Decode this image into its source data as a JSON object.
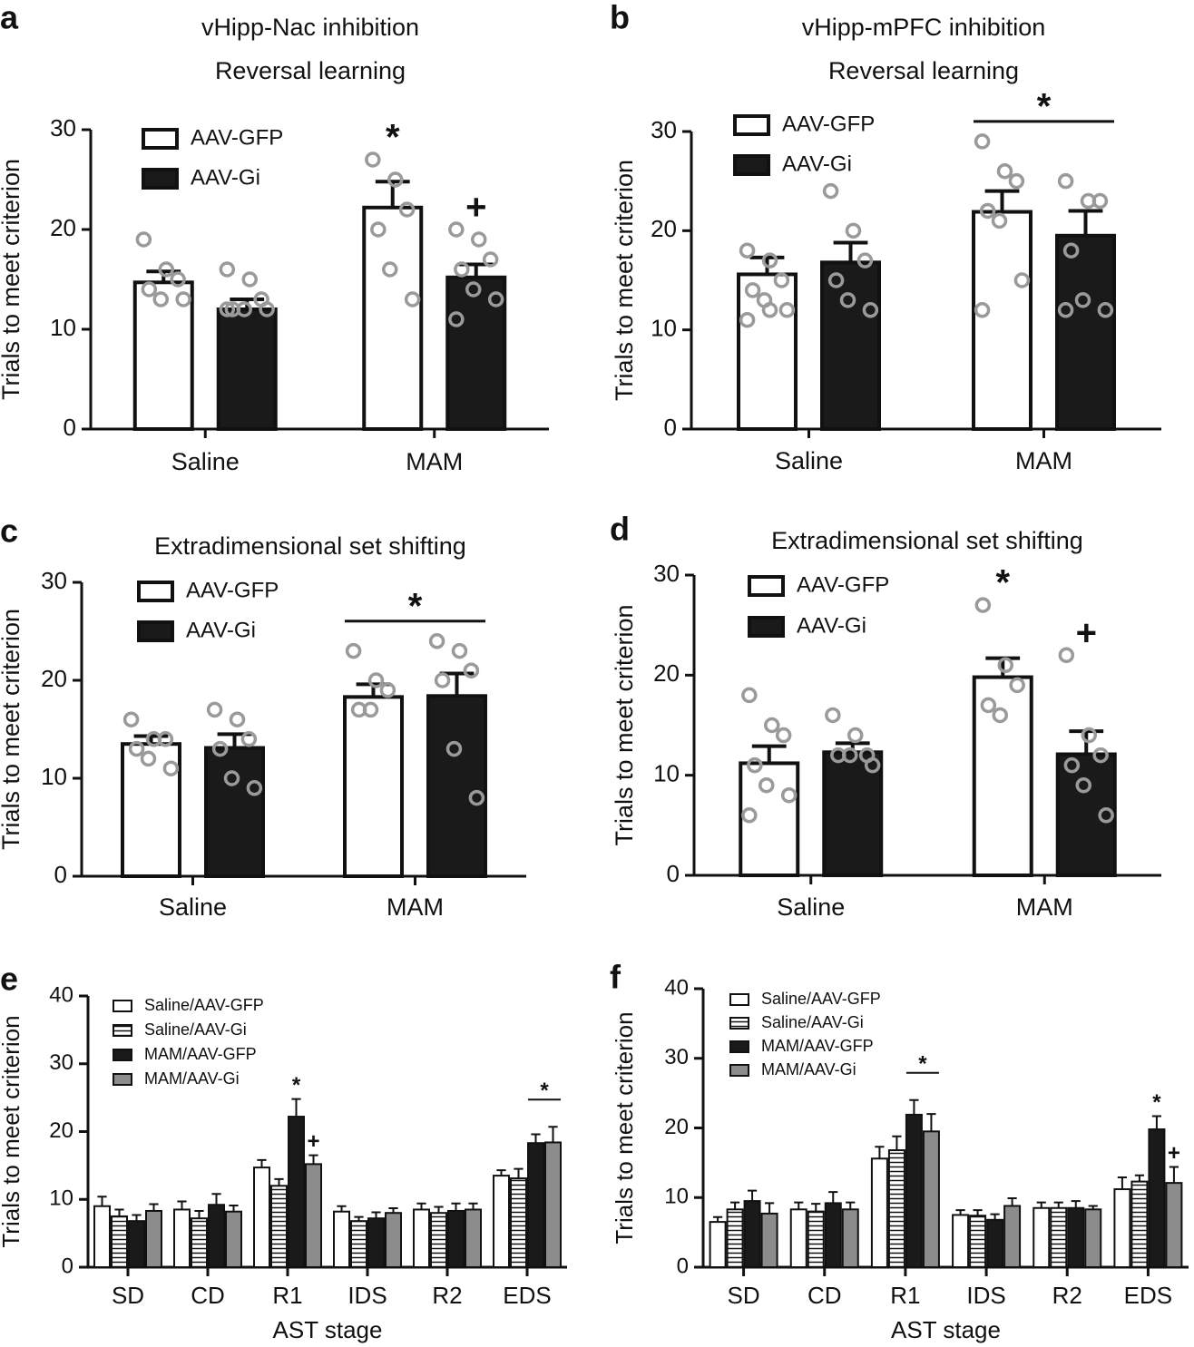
{
  "chart_data": [
    {
      "type": "bar",
      "panel": "a",
      "title": "vHipp-Nac inhibition",
      "subtitle": "Reversal learning",
      "ylabel": "Trials to meet criterion",
      "categories": [
        "Saline",
        "MAM"
      ],
      "ylim": [
        0,
        30
      ],
      "yticks": [
        0,
        10,
        20,
        30
      ],
      "series": [
        {
          "name": "AAV-GFP",
          "color": "#ffffff",
          "values": [
            14.7,
            22.2
          ],
          "errors": [
            1.1,
            2.6
          ],
          "points": [
            [
              19,
              16,
              15,
              14,
              13,
              13
            ],
            [
              27,
              25,
              22,
              20,
              16,
              13
            ]
          ]
        },
        {
          "name": "AAV-Gi",
          "color": "#1a1a1a",
          "values": [
            12,
            15.2
          ],
          "errors": [
            1,
            1.3
          ],
          "points": [
            [
              16,
              15,
              13,
              12,
              12,
              12,
              12
            ],
            [
              20,
              19,
              17,
              16,
              14,
              13,
              11
            ]
          ]
        }
      ],
      "annotations": [
        {
          "text": "*",
          "category": "MAM",
          "series": "AAV-GFP"
        },
        {
          "text": "+",
          "category": "MAM",
          "series": "AAV-Gi"
        }
      ]
    },
    {
      "type": "bar",
      "panel": "b",
      "title": "vHipp-mPFC inhibition",
      "subtitle": "Reversal learning",
      "ylabel": "Trials to meet criterion",
      "categories": [
        "Saline",
        "MAM"
      ],
      "ylim": [
        0,
        30
      ],
      "yticks": [
        0,
        10,
        20,
        30
      ],
      "series": [
        {
          "name": "AAV-GFP",
          "color": "#ffffff",
          "values": [
            15.6,
            21.9
          ],
          "errors": [
            1.7,
            2.1
          ],
          "points": [
            [
              18,
              17,
              15,
              14,
              13,
              12,
              11,
              12
            ],
            [
              29,
              26,
              25,
              22,
              21,
              15,
              12
            ]
          ]
        },
        {
          "name": "AAV-Gi",
          "color": "#1a1a1a",
          "values": [
            16.8,
            19.5
          ],
          "errors": [
            2,
            2.5
          ],
          "points": [
            [
              24,
              20,
              17,
              15,
              13,
              12
            ],
            [
              25,
              23,
              23,
              18,
              13,
              12,
              12
            ]
          ]
        }
      ],
      "annotations": [
        {
          "text": "*",
          "category": "MAM",
          "series": [
            "AAV-GFP",
            "AAV-Gi"
          ]
        }
      ]
    },
    {
      "type": "bar",
      "panel": "c",
      "title": "Extradimensional set shifting",
      "ylabel": "Trials to meet criterion",
      "categories": [
        "Saline",
        "MAM"
      ],
      "ylim": [
        0,
        30
      ],
      "yticks": [
        0,
        10,
        20,
        30
      ],
      "series": [
        {
          "name": "AAV-GFP",
          "color": "#ffffff",
          "values": [
            13.5,
            18.3
          ],
          "errors": [
            0.8,
            1.3
          ],
          "points": [
            [
              16,
              14,
              14,
              13,
              12,
              11
            ],
            [
              23,
              20,
              19,
              17,
              17
            ]
          ]
        },
        {
          "name": "AAV-Gi",
          "color": "#1a1a1a",
          "values": [
            13.1,
            18.4
          ],
          "errors": [
            1.4,
            2.3
          ],
          "points": [
            [
              17,
              16,
              14,
              13,
              10,
              9
            ],
            [
              24,
              23,
              21,
              20,
              13,
              8
            ]
          ]
        }
      ],
      "annotations": [
        {
          "text": "*",
          "category": "MAM",
          "series": [
            "AAV-GFP",
            "AAV-Gi"
          ]
        }
      ]
    },
    {
      "type": "bar",
      "panel": "d",
      "title": "Extradimensional set shifting",
      "ylabel": "Trials to meet criterion",
      "categories": [
        "Saline",
        "MAM"
      ],
      "ylim": [
        0,
        30
      ],
      "yticks": [
        0,
        10,
        20,
        30
      ],
      "series": [
        {
          "name": "AAV-GFP",
          "color": "#ffffff",
          "values": [
            11.2,
            19.8
          ],
          "errors": [
            1.7,
            1.9
          ],
          "points": [
            [
              18,
              15,
              14,
              11,
              9,
              8,
              6
            ],
            [
              27,
              21,
              19,
              17,
              16
            ]
          ]
        },
        {
          "name": "AAV-Gi",
          "color": "#1a1a1a",
          "values": [
            12.3,
            12.1
          ],
          "errors": [
            0.9,
            2.3
          ],
          "points": [
            [
              16,
              14,
              12,
              12,
              12,
              11
            ],
            [
              22,
              14,
              12,
              11,
              9,
              6
            ]
          ]
        }
      ],
      "annotations": [
        {
          "text": "*",
          "category": "MAM",
          "series": "AAV-GFP"
        },
        {
          "text": "+",
          "category": "MAM",
          "series": "AAV-Gi"
        }
      ]
    },
    {
      "type": "bar",
      "panel": "e",
      "ylabel": "Trials to meet criterion",
      "xlabel": "AST stage",
      "categories": [
        "SD",
        "CD",
        "R1",
        "IDS",
        "R2",
        "EDS"
      ],
      "ylim": [
        0,
        40
      ],
      "yticks": [
        0,
        10,
        20,
        30,
        40
      ],
      "series": [
        {
          "name": "Saline/AAV-GFP",
          "color": "#ffffff",
          "values": [
            9,
            8.5,
            14.7,
            8.2,
            8.5,
            13.5
          ],
          "errors": [
            1.4,
            1.2,
            1.1,
            0.8,
            0.9,
            0.8
          ]
        },
        {
          "name": "Saline/AAV-Gi",
          "color": "#ffffff",
          "pattern": "horizontal-stripes",
          "values": [
            7.5,
            7.2,
            12,
            6.8,
            8,
            13.1
          ],
          "errors": [
            1,
            1.1,
            1,
            0.6,
            0.9,
            1.4
          ]
        },
        {
          "name": "MAM/AAV-GFP",
          "color": "#1a1a1a",
          "values": [
            6.8,
            9.2,
            22.2,
            7.2,
            8.3,
            18.3
          ],
          "errors": [
            0.9,
            1.6,
            2.6,
            0.9,
            1.1,
            1.3
          ]
        },
        {
          "name": "MAM/AAV-Gi",
          "color": "#8c8c8c",
          "values": [
            8.3,
            8.2,
            15.2,
            8,
            8.5,
            18.4
          ],
          "errors": [
            1,
            0.9,
            1.3,
            0.7,
            0.9,
            2.3
          ]
        }
      ],
      "annotations": [
        {
          "text": "*",
          "category": "R1",
          "series": "MAM/AAV-GFP"
        },
        {
          "text": "+",
          "category": "R1",
          "series": "MAM/AAV-Gi"
        },
        {
          "text": "*",
          "category": "EDS",
          "series": [
            "MAM/AAV-GFP",
            "MAM/AAV-Gi"
          ]
        }
      ]
    },
    {
      "type": "bar",
      "panel": "f",
      "ylabel": "Trials to meet criterion",
      "xlabel": "AST stage",
      "categories": [
        "SD",
        "CD",
        "R1",
        "IDS",
        "R2",
        "EDS"
      ],
      "ylim": [
        0,
        40
      ],
      "yticks": [
        0,
        10,
        20,
        30,
        40
      ],
      "series": [
        {
          "name": "Saline/AAV-GFP",
          "color": "#ffffff",
          "values": [
            6.5,
            8.3,
            15.6,
            7.5,
            8.5,
            11.2
          ],
          "errors": [
            0.7,
            1,
            1.7,
            0.7,
            0.8,
            1.7
          ]
        },
        {
          "name": "Saline/AAV-Gi",
          "color": "#ffffff",
          "pattern": "horizontal-stripes",
          "values": [
            8.3,
            8,
            16.8,
            7.4,
            8.5,
            12.3
          ],
          "errors": [
            1,
            1.1,
            2,
            0.8,
            0.8,
            0.9
          ]
        },
        {
          "name": "MAM/AAV-GFP",
          "color": "#1a1a1a",
          "values": [
            9.5,
            9.2,
            21.9,
            6.8,
            8.5,
            19.8
          ],
          "errors": [
            1.5,
            1.6,
            2.1,
            0.8,
            1,
            1.9
          ]
        },
        {
          "name": "MAM/AAV-Gi",
          "color": "#8c8c8c",
          "values": [
            7.7,
            8.3,
            19.5,
            8.8,
            8.3,
            12.1
          ],
          "errors": [
            1.5,
            1,
            2.5,
            1.1,
            0.5,
            2.3
          ]
        }
      ],
      "annotations": [
        {
          "text": "*",
          "category": "R1",
          "series": [
            "MAM/AAV-GFP",
            "MAM/AAV-Gi"
          ]
        },
        {
          "text": "*",
          "category": "EDS",
          "series": "MAM/AAV-GFP"
        },
        {
          "text": "+",
          "category": "EDS",
          "series": "MAM/AAV-Gi"
        }
      ]
    }
  ]
}
